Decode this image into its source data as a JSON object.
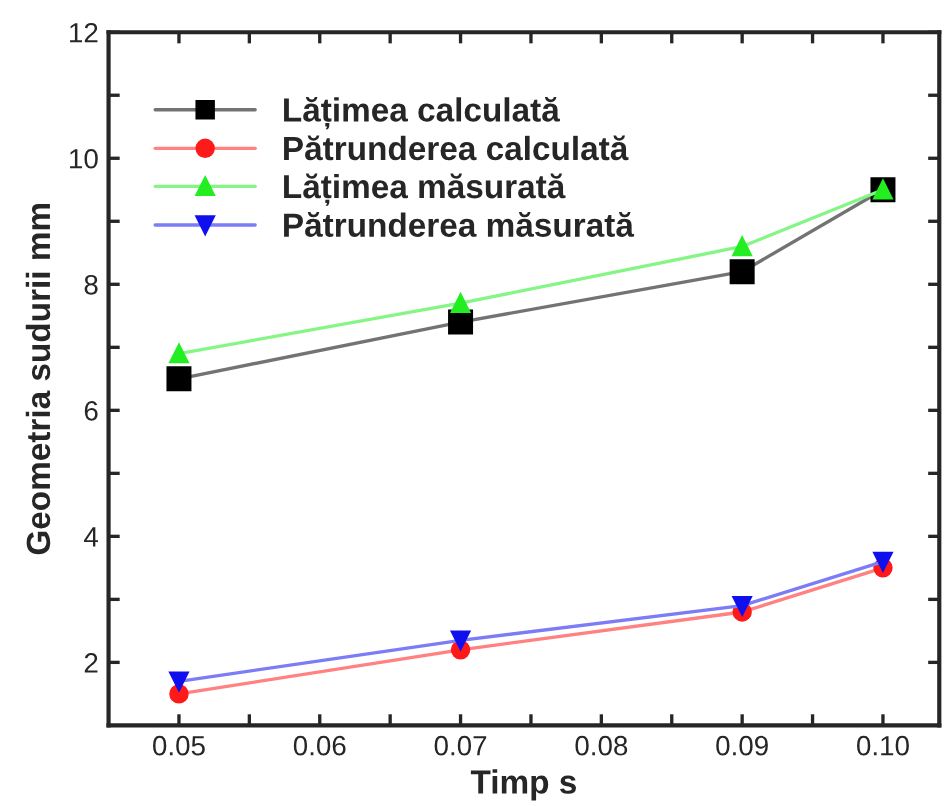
{
  "chart_data": {
    "type": "line",
    "xlabel": "Timp s",
    "ylabel": "Geometria sudurii mm",
    "x": [
      0.05,
      0.07,
      0.09,
      0.1
    ],
    "series": [
      {
        "name": "Lățimea calculată",
        "color": "#000000",
        "marker": "square",
        "values": [
          6.5,
          7.4,
          8.2,
          9.5
        ]
      },
      {
        "name": "Pătrunderea calculată",
        "color": "#ff1a1a",
        "marker": "circle",
        "values": [
          1.5,
          2.2,
          2.8,
          3.5
        ]
      },
      {
        "name": "Lățimea măsurată",
        "color": "#22ee22",
        "marker": "triangle",
        "values": [
          6.9,
          7.7,
          8.6,
          9.5
        ]
      },
      {
        "name": "Pătrunderea măsurată",
        "color": "#1010ee",
        "marker": "triangle_down",
        "values": [
          1.7,
          2.35,
          2.9,
          3.6
        ]
      }
    ],
    "xlim": [
      0.045,
      0.104
    ],
    "ylim": [
      1,
      12
    ],
    "xticks": [
      {
        "value": 0.05,
        "label": "0.05"
      },
      {
        "value": 0.055,
        "label": null
      },
      {
        "value": 0.06,
        "label": "0.06"
      },
      {
        "value": 0.065,
        "label": null
      },
      {
        "value": 0.07,
        "label": "0.07"
      },
      {
        "value": 0.075,
        "label": null
      },
      {
        "value": 0.08,
        "label": "0.08"
      },
      {
        "value": 0.085,
        "label": null
      },
      {
        "value": 0.09,
        "label": "0.09"
      },
      {
        "value": 0.095,
        "label": null
      },
      {
        "value": 0.1,
        "label": "0.10"
      }
    ],
    "yticks": [
      {
        "value": 2,
        "label": "2"
      },
      {
        "value": 3,
        "label": null
      },
      {
        "value": 4,
        "label": "4"
      },
      {
        "value": 5,
        "label": null
      },
      {
        "value": 6,
        "label": "6"
      },
      {
        "value": 7,
        "label": null
      },
      {
        "value": 8,
        "label": "8"
      },
      {
        "value": 9,
        "label": null
      },
      {
        "value": 10,
        "label": "10"
      },
      {
        "value": 11,
        "label": null
      },
      {
        "value": 12,
        "label": "12"
      }
    ],
    "grid": false,
    "legend": "top left",
    "line_style": "solid"
  }
}
